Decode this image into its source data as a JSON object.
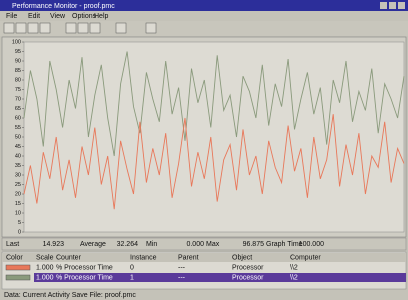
{
  "window": {
    "title": "Performance Monitor - proof.pmc"
  },
  "menu": [
    "File",
    "Edit",
    "View",
    "Options",
    "Help"
  ],
  "chart_data": {
    "type": "line",
    "ylim": [
      0,
      100
    ],
    "yticks": [
      0,
      5,
      10,
      15,
      20,
      25,
      30,
      35,
      40,
      45,
      50,
      55,
      60,
      65,
      70,
      75,
      80,
      85,
      90,
      95,
      100
    ],
    "grid": false,
    "series": [
      {
        "name": "% Processor Time",
        "color": "#8a9a7c",
        "values": [
          60,
          85,
          70,
          45,
          90,
          75,
          55,
          80,
          65,
          92,
          50,
          72,
          88,
          60,
          40,
          78,
          95,
          66,
          52,
          84,
          70,
          58,
          90,
          62,
          76,
          48,
          86,
          68,
          80,
          55,
          93,
          64,
          72,
          50,
          82,
          74,
          60,
          88,
          56,
          78,
          66,
          91,
          54,
          70,
          84,
          62,
          76,
          46,
          80,
          68,
          90,
          58,
          74,
          64,
          86,
          52,
          78,
          70,
          60,
          82
        ]
      },
      {
        "name": "% Processor Time",
        "color": "#e8785a",
        "values": [
          20,
          35,
          15,
          42,
          28,
          50,
          22,
          38,
          18,
          45,
          30,
          55,
          25,
          40,
          12,
          48,
          33,
          20,
          58,
          26,
          44,
          30,
          52,
          18,
          36,
          60,
          24,
          42,
          28,
          50,
          16,
          38,
          46,
          22,
          54,
          30,
          40,
          20,
          48,
          34,
          26,
          56,
          32,
          44,
          18,
          50,
          28,
          38,
          62,
          24,
          46,
          30,
          52,
          20,
          40,
          34,
          58,
          26,
          44,
          36
        ]
      }
    ]
  },
  "stats": [
    {
      "label": "Last",
      "value": "14.923"
    },
    {
      "label": "Average",
      "value": "32.264"
    },
    {
      "label": "Min",
      "value": "0.000"
    },
    {
      "label": "Max",
      "value": "96.875"
    },
    {
      "label": "Graph Time",
      "value": "100.000"
    }
  ],
  "legend": {
    "headers": [
      "Color",
      "Scale",
      "Counter",
      "Instance",
      "Parent",
      "Object",
      "Computer"
    ],
    "rows": [
      {
        "color": "#e8785a",
        "scale": "1.000",
        "counter": "% Processor Time",
        "instance": "0",
        "parent": "---",
        "object": "Processor",
        "computer": "\\\\2"
      },
      {
        "color": "#8a9a7c",
        "scale": "1.000",
        "counter": "% Processor Time",
        "instance": "1",
        "parent": "---",
        "object": "Processor",
        "computer": "\\\\2"
      }
    ]
  },
  "status": "Data: Current Activity  Save File: proof.pmc"
}
